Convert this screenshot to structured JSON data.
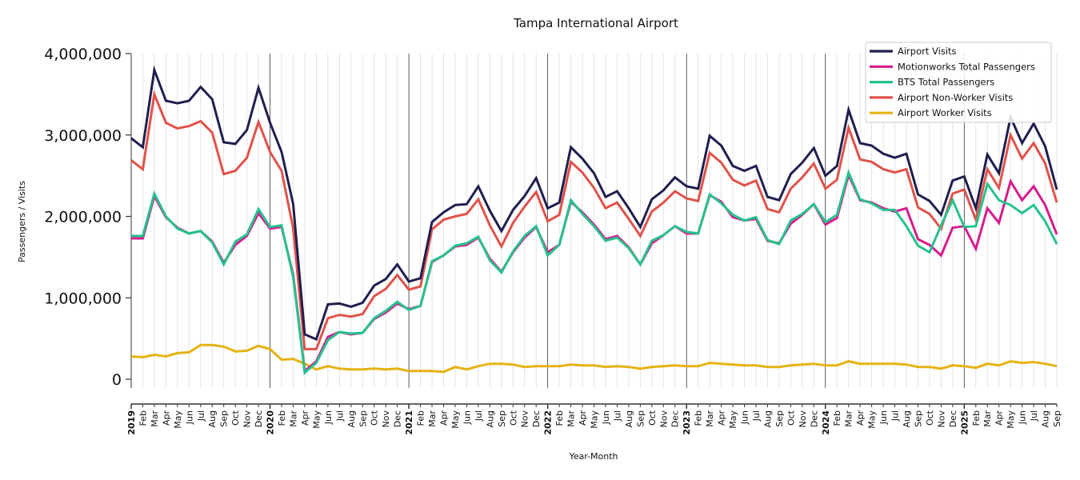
{
  "chart_data": {
    "type": "line",
    "title": "Tampa International Airport",
    "xlabel": "Year-Month",
    "ylabel": "Passengers / Visits",
    "ylim": [
      0,
      4000000
    ],
    "yticks": [
      0,
      1000000,
      2000000,
      3000000,
      4000000
    ],
    "ytick_labels": [
      "0",
      "1,000,000",
      "2,000,000",
      "3,000,000",
      "4,000,000"
    ],
    "grid": "vertical monthly gridlines, darker year separators",
    "legend_position": "top-right",
    "x": [
      "2019",
      "Feb",
      "Mar",
      "Apr",
      "May",
      "Jun",
      "Jul",
      "Aug",
      "Sep",
      "Oct",
      "Nov",
      "Dec",
      "2020",
      "Feb",
      "Mar",
      "Apr",
      "May",
      "Jun",
      "Jul",
      "Aug",
      "Sep",
      "Oct",
      "Nov",
      "Dec",
      "2021",
      "Feb",
      "Mar",
      "Apr",
      "May",
      "Jun",
      "Jul",
      "Aug",
      "Sep",
      "Oct",
      "Nov",
      "Dec",
      "2022",
      "Feb",
      "Mar",
      "Apr",
      "May",
      "Jun",
      "Jul",
      "Aug",
      "Sep",
      "Oct",
      "Nov",
      "Dec",
      "2023",
      "Feb",
      "Mar",
      "Apr",
      "May",
      "Jun",
      "Jul",
      "Aug",
      "Sep",
      "Oct",
      "Nov",
      "Dec",
      "2024",
      "Feb",
      "Mar",
      "Apr",
      "May",
      "Jun",
      "Jul",
      "Aug",
      "Sep",
      "Oct",
      "Nov",
      "Dec",
      "2025",
      "Feb",
      "Mar",
      "Apr",
      "May",
      "Jun",
      "Jul",
      "Aug",
      "Sep"
    ],
    "series": [
      {
        "name": "Airport Visits",
        "color": "#1f1f4f",
        "values": [
          2960000,
          2850000,
          3800000,
          3420000,
          3390000,
          3420000,
          3590000,
          3440000,
          2910000,
          2890000,
          3060000,
          3580000,
          3150000,
          2790000,
          2150000,
          550000,
          490000,
          920000,
          930000,
          890000,
          940000,
          1150000,
          1230000,
          1410000,
          1200000,
          1240000,
          1930000,
          2050000,
          2140000,
          2150000,
          2370000,
          2070000,
          1820000,
          2080000,
          2250000,
          2470000,
          2100000,
          2170000,
          2850000,
          2710000,
          2530000,
          2240000,
          2310000,
          2100000,
          1870000,
          2210000,
          2320000,
          2480000,
          2370000,
          2340000,
          2990000,
          2870000,
          2620000,
          2560000,
          2620000,
          2240000,
          2200000,
          2520000,
          2660000,
          2840000,
          2500000,
          2620000,
          3310000,
          2900000,
          2870000,
          2770000,
          2720000,
          2770000,
          2270000,
          2190000,
          2020000,
          2440000,
          2490000,
          2100000,
          2760000,
          2530000,
          3220000,
          2900000,
          3140000,
          2860000,
          2330000
        ]
      },
      {
        "name": "Motionworks Total Passengers",
        "color": "#d81b8c",
        "values": [
          1730000,
          1730000,
          2250000,
          1990000,
          1860000,
          1790000,
          1820000,
          1690000,
          1430000,
          1650000,
          1760000,
          2040000,
          1850000,
          1870000,
          1280000,
          100000,
          220000,
          520000,
          580000,
          550000,
          570000,
          740000,
          820000,
          930000,
          860000,
          900000,
          1440000,
          1520000,
          1630000,
          1650000,
          1740000,
          1480000,
          1320000,
          1560000,
          1740000,
          1870000,
          1560000,
          1650000,
          2180000,
          2050000,
          1900000,
          1720000,
          1760000,
          1620000,
          1410000,
          1670000,
          1770000,
          1880000,
          1790000,
          1790000,
          2260000,
          2180000,
          1990000,
          1950000,
          1970000,
          1700000,
          1670000,
          1910000,
          2020000,
          2150000,
          1900000,
          1980000,
          2510000,
          2200000,
          2170000,
          2100000,
          2060000,
          2100000,
          1720000,
          1650000,
          1520000,
          1860000,
          1880000,
          1600000,
          2100000,
          1920000,
          2430000,
          2200000,
          2370000,
          2140000,
          1780000
        ]
      },
      {
        "name": "BTS Total Passengers",
        "color": "#26c28e",
        "values": [
          1760000,
          1760000,
          2280000,
          2000000,
          1850000,
          1790000,
          1820000,
          1680000,
          1410000,
          1690000,
          1780000,
          2090000,
          1870000,
          1890000,
          1250000,
          80000,
          200000,
          480000,
          580000,
          560000,
          570000,
          750000,
          840000,
          950000,
          850000,
          900000,
          1450000,
          1520000,
          1640000,
          1670000,
          1750000,
          1460000,
          1310000,
          1570000,
          1760000,
          1880000,
          1520000,
          1650000,
          2200000,
          2030000,
          1880000,
          1700000,
          1740000,
          1610000,
          1410000,
          1700000,
          1770000,
          1880000,
          1810000,
          1790000,
          2270000,
          2160000,
          2020000,
          1950000,
          1990000,
          1710000,
          1660000,
          1950000,
          2030000,
          2150000,
          1930000,
          2020000,
          2540000,
          2210000,
          2160000,
          2080000,
          2080000,
          1880000,
          1640000,
          1560000,
          1890000,
          2200000,
          1870000,
          1880000,
          2400000,
          2200000,
          2140000,
          2040000,
          2140000,
          1940000,
          1660000
        ]
      },
      {
        "name": "Airport Non-Worker Visits",
        "color": "#e0524a",
        "values": [
          2690000,
          2580000,
          3500000,
          3150000,
          3080000,
          3110000,
          3170000,
          3030000,
          2520000,
          2560000,
          2720000,
          3160000,
          2790000,
          2560000,
          1850000,
          370000,
          370000,
          750000,
          790000,
          770000,
          800000,
          1020000,
          1110000,
          1280000,
          1100000,
          1140000,
          1840000,
          1960000,
          2000000,
          2030000,
          2210000,
          1890000,
          1630000,
          1920000,
          2120000,
          2300000,
          1940000,
          2020000,
          2670000,
          2540000,
          2350000,
          2100000,
          2170000,
          1970000,
          1760000,
          2060000,
          2170000,
          2310000,
          2220000,
          2190000,
          2780000,
          2660000,
          2450000,
          2380000,
          2440000,
          2090000,
          2050000,
          2340000,
          2480000,
          2650000,
          2340000,
          2450000,
          3090000,
          2700000,
          2670000,
          2580000,
          2540000,
          2580000,
          2110000,
          2030000,
          1850000,
          2280000,
          2330000,
          1960000,
          2580000,
          2350000,
          3000000,
          2710000,
          2900000,
          2650000,
          2170000
        ]
      },
      {
        "name": "Airport Worker Visits",
        "color": "#e6b212",
        "values": [
          280000,
          270000,
          300000,
          280000,
          320000,
          330000,
          420000,
          420000,
          400000,
          340000,
          350000,
          410000,
          370000,
          240000,
          250000,
          190000,
          120000,
          160000,
          130000,
          120000,
          120000,
          130000,
          120000,
          130000,
          100000,
          100000,
          100000,
          90000,
          150000,
          120000,
          160000,
          190000,
          190000,
          180000,
          150000,
          160000,
          160000,
          160000,
          180000,
          170000,
          170000,
          150000,
          160000,
          150000,
          130000,
          150000,
          160000,
          170000,
          160000,
          160000,
          200000,
          190000,
          180000,
          170000,
          170000,
          150000,
          150000,
          170000,
          180000,
          190000,
          170000,
          170000,
          220000,
          190000,
          190000,
          190000,
          190000,
          180000,
          150000,
          150000,
          130000,
          170000,
          160000,
          140000,
          190000,
          170000,
          220000,
          200000,
          210000,
          190000,
          160000
        ]
      }
    ]
  }
}
